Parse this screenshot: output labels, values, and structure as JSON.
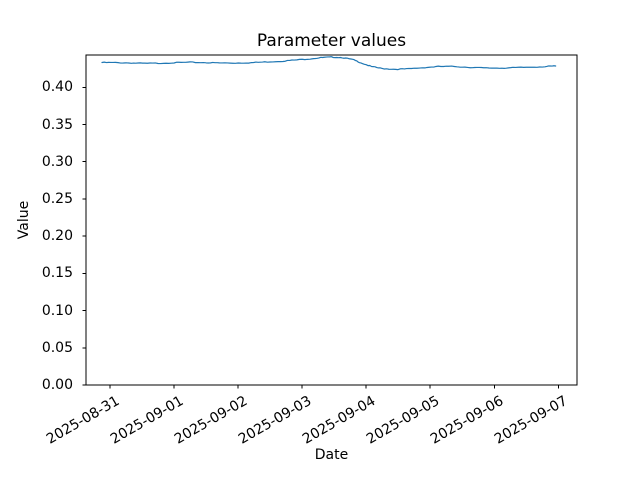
{
  "figure": {
    "background": "#ffffff",
    "text_color": "#000000"
  },
  "chart_data": {
    "type": "line",
    "title": "Parameter values",
    "xlabel": "Date",
    "ylabel": "Value",
    "grid": false,
    "legend": null,
    "axes_color": "#000000",
    "line_color": "#1f77b4",
    "noise_amplitude": 0.0006,
    "xlim": [
      "2025-08-30T15:00:00",
      "2025-09-07T07:00:00"
    ],
    "ylim": [
      0.0,
      0.4434
    ],
    "x_ticks": [
      {
        "t": "2025-08-31T00:00:00",
        "label": "2025-08-31"
      },
      {
        "t": "2025-09-01T00:00:00",
        "label": "2025-09-01"
      },
      {
        "t": "2025-09-02T00:00:00",
        "label": "2025-09-02"
      },
      {
        "t": "2025-09-03T00:00:00",
        "label": "2025-09-03"
      },
      {
        "t": "2025-09-04T00:00:00",
        "label": "2025-09-04"
      },
      {
        "t": "2025-09-05T00:00:00",
        "label": "2025-09-05"
      },
      {
        "t": "2025-09-06T00:00:00",
        "label": "2025-09-06"
      },
      {
        "t": "2025-09-07T00:00:00",
        "label": "2025-09-07"
      }
    ],
    "y_ticks": [
      {
        "v": 0.0,
        "label": "0.00"
      },
      {
        "v": 0.05,
        "label": "0.05"
      },
      {
        "v": 0.1,
        "label": "0.10"
      },
      {
        "v": 0.15,
        "label": "0.15"
      },
      {
        "v": 0.2,
        "label": "0.20"
      },
      {
        "v": 0.25,
        "label": "0.25"
      },
      {
        "v": 0.3,
        "label": "0.30"
      },
      {
        "v": 0.35,
        "label": "0.35"
      },
      {
        "v": 0.4,
        "label": "0.40"
      }
    ],
    "series": [
      {
        "color": "#1f77b4",
        "points": [
          [
            "2025-08-30T21:00:00",
            0.4333
          ],
          [
            "2025-08-31T02:00:00",
            0.4331
          ],
          [
            "2025-08-31T08:00:00",
            0.4327
          ],
          [
            "2025-08-31T13:00:00",
            0.4321
          ],
          [
            "2025-08-31T19:00:00",
            0.4324
          ],
          [
            "2025-09-01T01:00:00",
            0.4331
          ],
          [
            "2025-09-01T06:00:00",
            0.4336
          ],
          [
            "2025-09-01T12:00:00",
            0.4332
          ],
          [
            "2025-09-01T17:00:00",
            0.4327
          ],
          [
            "2025-09-01T23:00:00",
            0.4326
          ],
          [
            "2025-09-02T05:00:00",
            0.4331
          ],
          [
            "2025-09-02T10:00:00",
            0.434
          ],
          [
            "2025-09-02T16:00:00",
            0.435
          ],
          [
            "2025-09-02T21:00:00",
            0.4365
          ],
          [
            "2025-09-03T03:00:00",
            0.4383
          ],
          [
            "2025-09-03T07:00:00",
            0.4398
          ],
          [
            "2025-09-03T11:00:00",
            0.4406
          ],
          [
            "2025-09-03T15:00:00",
            0.44
          ],
          [
            "2025-09-03T19:00:00",
            0.4372
          ],
          [
            "2025-09-03T22:00:00",
            0.433
          ],
          [
            "2025-09-04T02:00:00",
            0.4278
          ],
          [
            "2025-09-04T06:00:00",
            0.4252
          ],
          [
            "2025-09-04T11:00:00",
            0.4242
          ],
          [
            "2025-09-04T16:00:00",
            0.4248
          ],
          [
            "2025-09-04T22:00:00",
            0.4266
          ],
          [
            "2025-09-05T03:00:00",
            0.4279
          ],
          [
            "2025-09-05T09:00:00",
            0.428
          ],
          [
            "2025-09-05T15:00:00",
            0.4268
          ],
          [
            "2025-09-05T20:00:00",
            0.426
          ],
          [
            "2025-09-06T02:00:00",
            0.4258
          ],
          [
            "2025-09-06T07:00:00",
            0.4263
          ],
          [
            "2025-09-06T13:00:00",
            0.427
          ],
          [
            "2025-09-06T19:00:00",
            0.4278
          ],
          [
            "2025-09-06T23:00:00",
            0.4286
          ]
        ]
      }
    ]
  }
}
